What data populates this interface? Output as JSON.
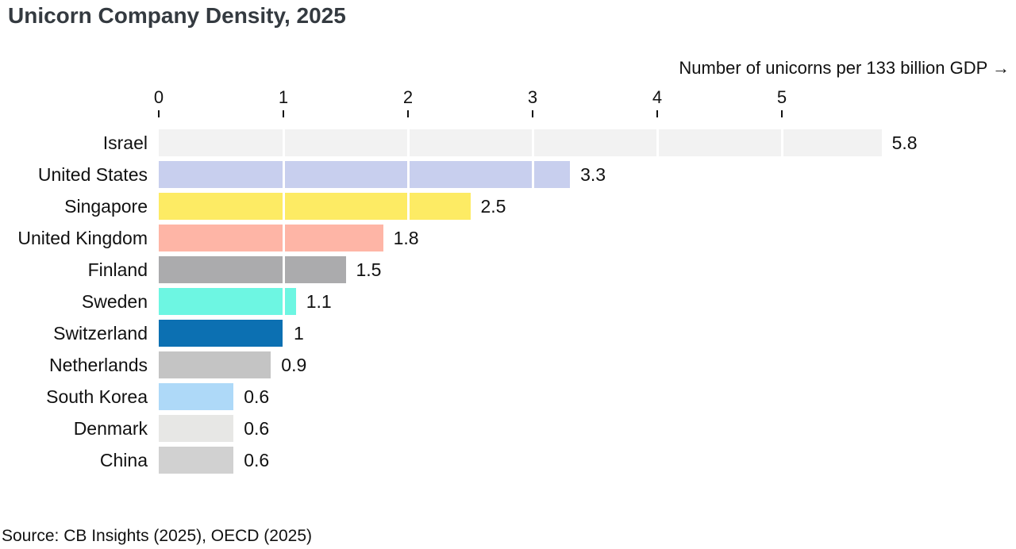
{
  "header": {
    "title": "Unicorn Company Density, 2025"
  },
  "footer": {
    "source": "Source: CB Insights (2025), OECD (2025)"
  },
  "colors": {
    "background": "#ffffff",
    "title_text": "#343a40",
    "axis_text": "#111111",
    "grid_line": "#ffffff",
    "tick_mark": "#111111"
  },
  "chart_data": {
    "type": "bar",
    "orientation": "horizontal",
    "title": "Unicorn Company Density, 2025",
    "axis_label": "Number of unicorns per 133 billion GDP →",
    "source": "Source: CB Insights (2025), OECD (2025)",
    "xlim": [
      0,
      5.8
    ],
    "ticks": [
      0,
      1,
      2,
      3,
      4,
      5
    ],
    "grid": "white vertical lines over bars at integer ticks",
    "legend": "none",
    "categories": [
      "Israel",
      "United States",
      "Singapore",
      "United Kingdom",
      "Finland",
      "Sweden",
      "Switzerland",
      "Netherlands",
      "South Korea",
      "Denmark",
      "China"
    ],
    "values": [
      5.8,
      3.3,
      2.5,
      1.8,
      1.5,
      1.1,
      1,
      0.9,
      0.6,
      0.6,
      0.6
    ],
    "value_labels": [
      "5.8",
      "3.3",
      "2.5",
      "1.8",
      "1.5",
      "1.1",
      "1",
      "0.9",
      "0.6",
      "0.6",
      "0.6"
    ],
    "bar_colors": [
      "#f2f2f2",
      "#c8cfee",
      "#fdeb64",
      "#feb5a6",
      "#ababad",
      "#6df6e2",
      "#0c70b2",
      "#c4c4c4",
      "#aed9f8",
      "#e7e7e5",
      "#d1d1d1"
    ]
  }
}
